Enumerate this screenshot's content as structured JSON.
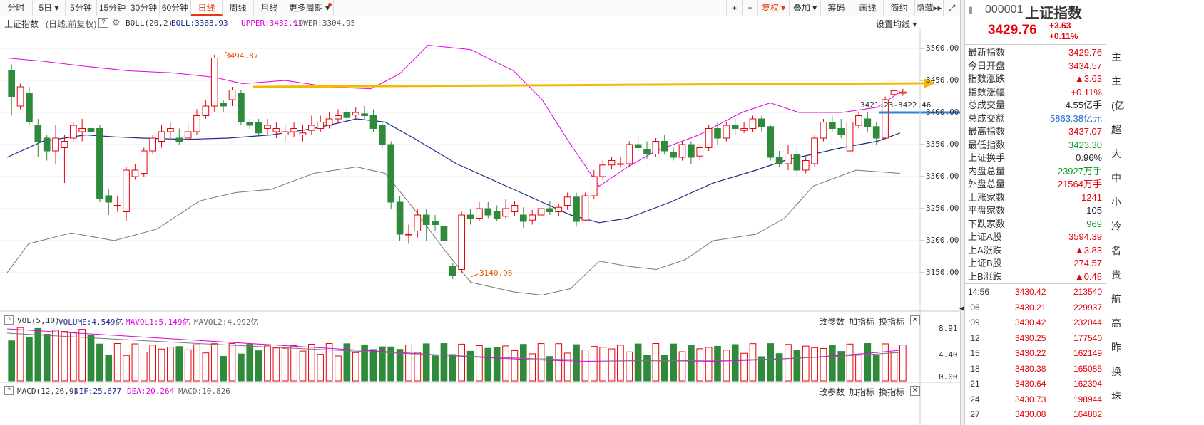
{
  "toolbar": {
    "periods": [
      "分时",
      "5日",
      "5分钟",
      "15分钟",
      "30分钟",
      "60分钟",
      "日线",
      "周线",
      "月线",
      "更多周期"
    ],
    "active_period": "日线",
    "right_tools": [
      "+",
      "−",
      "复权",
      "叠加",
      "筹码",
      "画线",
      "简约",
      "隐藏"
    ]
  },
  "chart_header": {
    "name": "上证指数",
    "mode": "(日线,前复权)",
    "help": "?",
    "boll_label": "BOLL(20,2)",
    "boll_value": "BOLL:3368.93",
    "upper_value": "UPPER:3432.91",
    "lower_value": "LOWER:3304.95",
    "setting": "设置均线"
  },
  "price_axis": [
    "3500.00",
    "3450.00",
    "3400.00",
    "3350.00",
    "3300.00",
    "3250.00",
    "3200.00",
    "3150.00"
  ],
  "annotations": {
    "high": "3494.87",
    "low": "3140.98",
    "range": "3421.23-3422.46"
  },
  "vol_header": {
    "label": "VOL(5,10)",
    "volume": "VOLUME:4.549亿",
    "mavol1": "MAVOL1:5.149亿",
    "mavol2": "MAVOL2:4.992亿",
    "axis": [
      "8.91",
      "4.40",
      "0.00"
    ]
  },
  "macd_header": {
    "label": "MACD(12,26,9)",
    "dif": "DIF:25.677",
    "dea": "DEA:20.264",
    "macd": "MACD:10.826"
  },
  "panel_buttons": [
    "改参数",
    "加指标",
    "换指标"
  ],
  "quote": {
    "code": "000001",
    "name": "上证指数",
    "price": "3429.76",
    "change": "+3.63",
    "change_pct": "+0.11%",
    "rows": [
      {
        "k": "最新指数",
        "v": "3429.76",
        "c": "red"
      },
      {
        "k": "今日开盘",
        "v": "3434.57",
        "c": "red"
      },
      {
        "k": "指数涨跌",
        "v": "▲3.63",
        "c": "red"
      },
      {
        "k": "指数涨幅",
        "v": "+0.11%",
        "c": "red"
      },
      {
        "k": "总成交量",
        "v": "4.55亿手",
        "c": "blk"
      },
      {
        "k": "总成交额",
        "v": "5863.38亿元",
        "c": "blue"
      },
      {
        "k": "最高指数",
        "v": "3437.07",
        "c": "red"
      },
      {
        "k": "最低指数",
        "v": "3423.30",
        "c": "green"
      },
      {
        "k": "上证换手",
        "v": "0.96%",
        "c": "blk"
      },
      {
        "k": "内盘总量",
        "v": "23927万手",
        "c": "green"
      },
      {
        "k": "外盘总量",
        "v": "21564万手",
        "c": "red"
      },
      {
        "k": "上涨家数",
        "v": "1241",
        "c": "red"
      },
      {
        "k": "平盘家数",
        "v": "105",
        "c": "blk"
      },
      {
        "k": "下跌家数",
        "v": "969",
        "c": "green"
      },
      {
        "k": "上证A股",
        "v": "3594.39",
        "c": "red"
      },
      {
        "k": "上A涨跌",
        "v": "▲3.83",
        "c": "red"
      },
      {
        "k": "上证B股",
        "v": "274.57",
        "c": "red"
      },
      {
        "k": "上B涨跌",
        "v": "▲0.48",
        "c": "red"
      }
    ],
    "ticks": [
      {
        "t": "14:56",
        "p": "3430.42",
        "q": "213540"
      },
      {
        "t": ":06",
        "p": "3430.21",
        "q": "229937"
      },
      {
        "t": ":09",
        "p": "3430.42",
        "q": "232044"
      },
      {
        "t": ":12",
        "p": "3430.25",
        "q": "177540"
      },
      {
        "t": ":15",
        "p": "3430.22",
        "q": "162149"
      },
      {
        "t": ":18",
        "p": "3430.38",
        "q": "165085"
      },
      {
        "t": ":21",
        "p": "3430.64",
        "q": "162394"
      },
      {
        "t": ":24",
        "p": "3430.73",
        "q": "198944"
      },
      {
        "t": ":27",
        "p": "3430.08",
        "q": "164882"
      }
    ]
  },
  "edge_chars": [
    "主",
    "主",
    "(亿",
    "超",
    "大",
    "中",
    "小",
    "冷",
    "名",
    "贵",
    "航",
    "高",
    "昨",
    "换",
    "珠"
  ],
  "colors": {
    "up": "#e8000b",
    "down": "#2f8a3b",
    "boll_upper": "#e000e0",
    "boll_mid": "#1c2a8c",
    "boll_lower": "#777777",
    "arrow_yellow": "#f5b800",
    "arrow_blue": "#2e7fe0"
  }
}
